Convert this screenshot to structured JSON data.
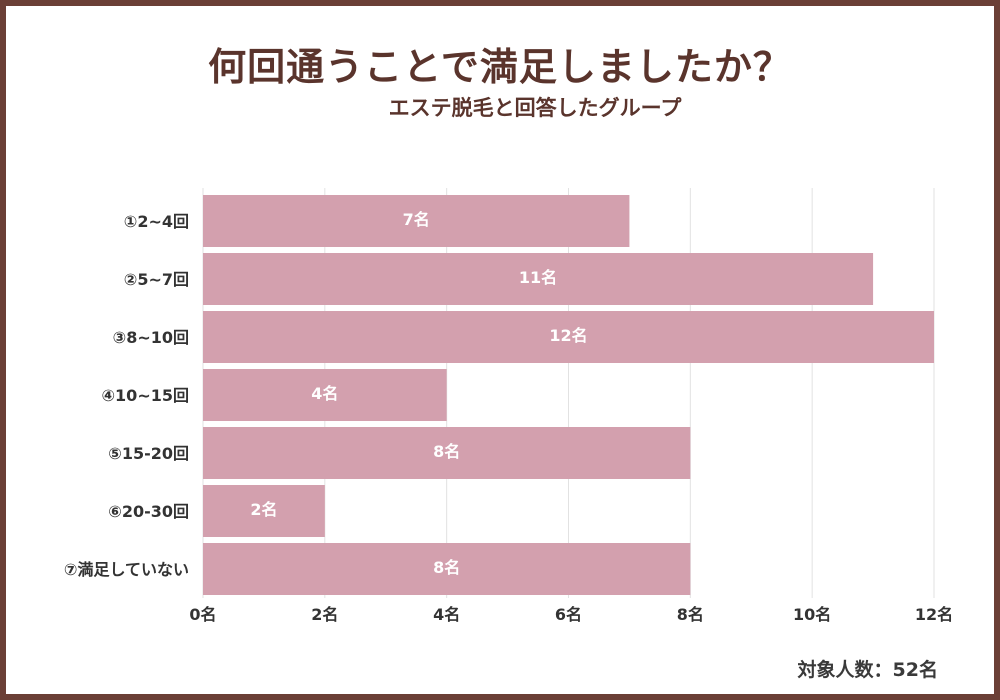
{
  "title": "何回通うことで満足しましたか？",
  "subtitle": "エステ脱毛と回答したグループ",
  "footer": "対象人数：52名",
  "colors": {
    "bar": "#d3a0ae",
    "border": "#6b3f36",
    "title": "#5a342c",
    "grid": "#e2e2e2"
  },
  "chart_data": {
    "type": "bar",
    "orientation": "horizontal",
    "title": "何回通うことで満足しましたか？",
    "subtitle": "エステ脱毛と回答したグループ",
    "categories": [
      "①2~4回",
      "②5~7回",
      "③8~10回",
      "④10~15回",
      "⑤15-20回",
      "⑥20-30回",
      "⑦満足していない"
    ],
    "values": [
      7,
      11,
      12,
      4,
      8,
      2,
      8
    ],
    "data_labels": [
      "7名",
      "11名",
      "12名",
      "4名",
      "8名",
      "2名",
      "8名"
    ],
    "xlim": [
      0,
      12
    ],
    "xticks": [
      0,
      2,
      4,
      6,
      8,
      10,
      12
    ],
    "xtick_labels": [
      "0名",
      "2名",
      "4名",
      "6名",
      "8名",
      "10名",
      "12名"
    ],
    "grid": true,
    "xlabel": "",
    "ylabel": ""
  }
}
